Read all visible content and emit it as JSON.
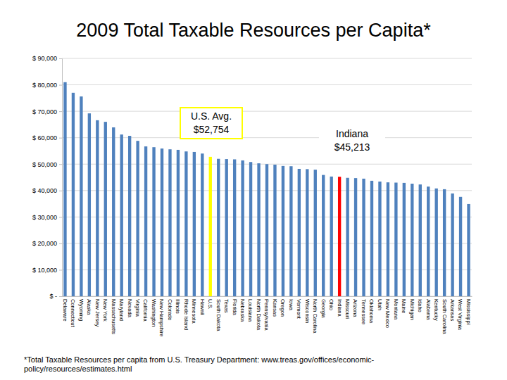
{
  "chart_data": {
    "type": "bar",
    "title": "2009 Total Taxable Resources per Capita*",
    "categories": [
      "Delaware",
      "Connecticut",
      "Wyoming",
      "Alaska",
      "New Jersey",
      "New York",
      "Massachusetts",
      "Maryland",
      "Nevada",
      "Virginia",
      "California",
      "Washington",
      "New Hampshire",
      "Colorado",
      "Illinois",
      "Rhode Island",
      "Minnesota",
      "Hawaii",
      "U.S.",
      "South Dakota",
      "Texas",
      "Florida",
      "Nebraska",
      "Louisiana",
      "North Dakota",
      "Pennsylvania",
      "Kansas",
      "Oregon",
      "Iowa",
      "Vermont",
      "Wisconsin",
      "North Carolina",
      "Georgia",
      "Ohio",
      "Indiana",
      "Missouri",
      "Arizona",
      "Tennessee",
      "Oklahoma",
      "Utah",
      "New Mexico",
      "Montana",
      "Maine",
      "Michigan",
      "Idaho",
      "Alabama",
      "Kentucky",
      "South Carolina",
      "Arkansas",
      "West Virginia",
      "Mississippi"
    ],
    "values": [
      81000,
      77000,
      75600,
      69200,
      66600,
      66000,
      63900,
      61200,
      60700,
      58800,
      56700,
      56400,
      55900,
      55600,
      55400,
      54800,
      54600,
      54000,
      52754,
      52000,
      51900,
      51800,
      51400,
      50800,
      50300,
      50000,
      49800,
      49300,
      49200,
      48200,
      48100,
      47900,
      45900,
      45300,
      45213,
      44800,
      44700,
      44500,
      43700,
      43400,
      43100,
      43000,
      42900,
      42600,
      42300,
      41500,
      40800,
      40500,
      38900,
      37600,
      34900
    ],
    "colors": [
      "#4f81bd",
      "#4f81bd",
      "#4f81bd",
      "#4f81bd",
      "#4f81bd",
      "#4f81bd",
      "#4f81bd",
      "#4f81bd",
      "#4f81bd",
      "#4f81bd",
      "#4f81bd",
      "#4f81bd",
      "#4f81bd",
      "#4f81bd",
      "#4f81bd",
      "#4f81bd",
      "#4f81bd",
      "#4f81bd",
      "#ffff00",
      "#4f81bd",
      "#4f81bd",
      "#4f81bd",
      "#4f81bd",
      "#4f81bd",
      "#4f81bd",
      "#4f81bd",
      "#4f81bd",
      "#4f81bd",
      "#4f81bd",
      "#4f81bd",
      "#4f81bd",
      "#4f81bd",
      "#4f81bd",
      "#4f81bd",
      "#ff0000",
      "#4f81bd",
      "#4f81bd",
      "#4f81bd",
      "#4f81bd",
      "#4f81bd",
      "#4f81bd",
      "#4f81bd",
      "#4f81bd",
      "#4f81bd",
      "#4f81bd",
      "#4f81bd",
      "#4f81bd",
      "#4f81bd",
      "#4f81bd",
      "#4f81bd",
      "#4f81bd"
    ],
    "ylim": [
      0,
      90000
    ],
    "yticks": [
      {
        "value": 0,
        "label": "$ -"
      },
      {
        "value": 10000,
        "label": "$ 10,000"
      },
      {
        "value": 20000,
        "label": "$ 20,000"
      },
      {
        "value": 30000,
        "label": "$ 30,000"
      },
      {
        "value": 40000,
        "label": "$ 40,000"
      },
      {
        "value": 50000,
        "label": "$ 50,000"
      },
      {
        "value": 60000,
        "label": "$ 60,000"
      },
      {
        "value": 70000,
        "label": "$ 70,000"
      },
      {
        "value": 80000,
        "label": "$ 80,000"
      },
      {
        "value": 90000,
        "label": "$ 90,000"
      }
    ],
    "grid": true,
    "annotations": [
      {
        "lines": [
          "U.S. Avg.",
          "$52,754"
        ],
        "color": "#ffff00"
      },
      {
        "lines": [
          "Indiana",
          "$45,213"
        ],
        "color": "#ffffff"
      }
    ],
    "footnote": [
      "*Total Taxable Resources per capita from U.S. Treasury Department: www.treas.gov/offices/economic-",
      "policy/resources/estimates.html"
    ]
  }
}
